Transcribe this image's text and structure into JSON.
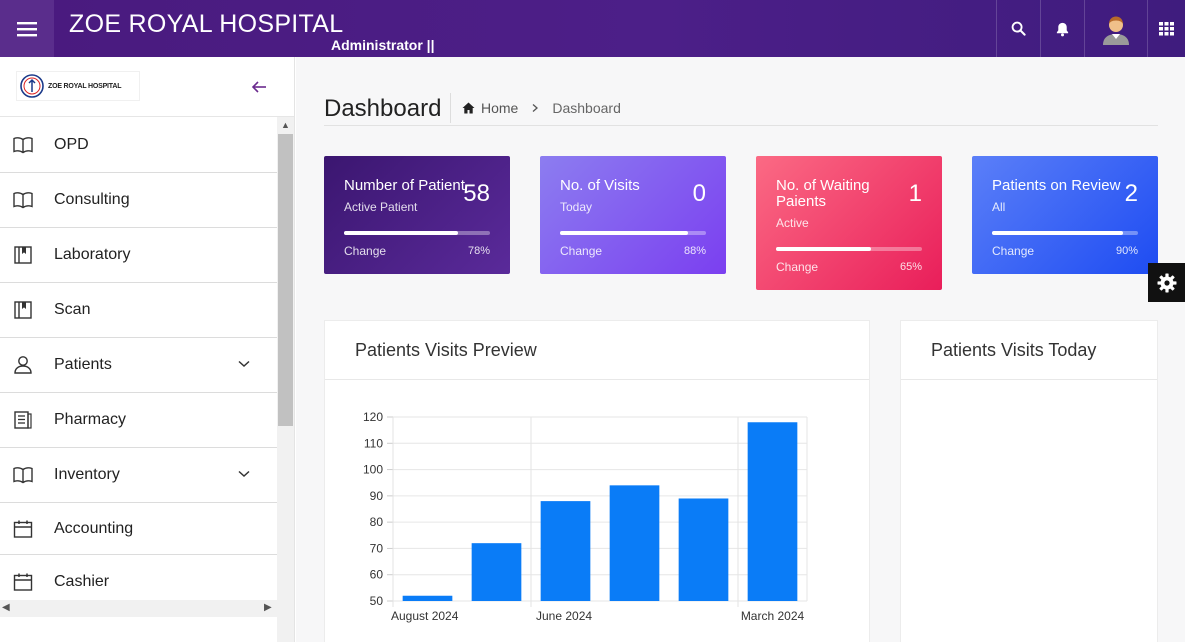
{
  "topbar": {
    "brand": "ZOE ROYAL HOSPITAL",
    "role": "Administrator ||",
    "icons": [
      "menu-icon",
      "search-icon",
      "bell-icon",
      "avatar",
      "apps-grid-icon"
    ]
  },
  "sidebar": {
    "logo_text": "ZOE ROYAL HOSPITAL",
    "items": [
      {
        "label": "OPD",
        "icon": "book-icon",
        "has_submenu": false
      },
      {
        "label": "Consulting",
        "icon": "book-icon",
        "has_submenu": false
      },
      {
        "label": "Laboratory",
        "icon": "bookmark-book-icon",
        "has_submenu": false
      },
      {
        "label": "Scan",
        "icon": "bookmark-book-icon",
        "has_submenu": false
      },
      {
        "label": "Patients",
        "icon": "user-icon",
        "has_submenu": true
      },
      {
        "label": "Pharmacy",
        "icon": "list-icon",
        "has_submenu": false
      },
      {
        "label": "Inventory",
        "icon": "book-icon",
        "has_submenu": true
      },
      {
        "label": "Accounting",
        "icon": "calendar-icon",
        "has_submenu": false
      },
      {
        "label": "Cashier",
        "icon": "calendar-icon",
        "has_submenu": false
      }
    ]
  },
  "main": {
    "title": "Dashboard",
    "breadcrumb": {
      "home": "Home",
      "current": "Dashboard"
    },
    "cards": [
      {
        "title": "Number of Patient",
        "subtitle": "Active Patient",
        "value": "58",
        "change_label": "Change",
        "percent": "78%",
        "progress": 0.78,
        "colors": [
          "#3b1670",
          "#5a2a9a"
        ]
      },
      {
        "title": "No. of Visits",
        "subtitle": "Today",
        "value": "0",
        "change_label": "Change",
        "percent": "88%",
        "progress": 0.88,
        "colors": [
          "#8c7df0",
          "#7b3ff0"
        ]
      },
      {
        "title": "No. of Waiting Paients",
        "subtitle": "Active",
        "value": "1",
        "change_label": "Change",
        "percent": "65%",
        "progress": 0.65,
        "colors": [
          "#fb6a84",
          "#e91e5a"
        ]
      },
      {
        "title": "Patients on Review",
        "subtitle": "All",
        "value": "2",
        "change_label": "Change",
        "percent": "90%",
        "progress": 0.9,
        "colors": [
          "#5b7ff8",
          "#1e4cf2"
        ]
      }
    ],
    "panels": {
      "visits_preview_title": "Patients Visits Preview",
      "visits_today_title": "Patients Visits Today"
    }
  },
  "chart_data": {
    "type": "bar",
    "title": "",
    "xlabel": "",
    "ylabel": "",
    "values": [
      52,
      72,
      88,
      94,
      89,
      118
    ],
    "x_tick_labels": [
      "August 2024",
      "June 2024",
      "March 2024"
    ],
    "ylim": [
      50,
      120
    ],
    "y_ticks": [
      50,
      60,
      70,
      80,
      90,
      100,
      110,
      120
    ],
    "bar_color": "#0a7cf7",
    "grid": true
  }
}
